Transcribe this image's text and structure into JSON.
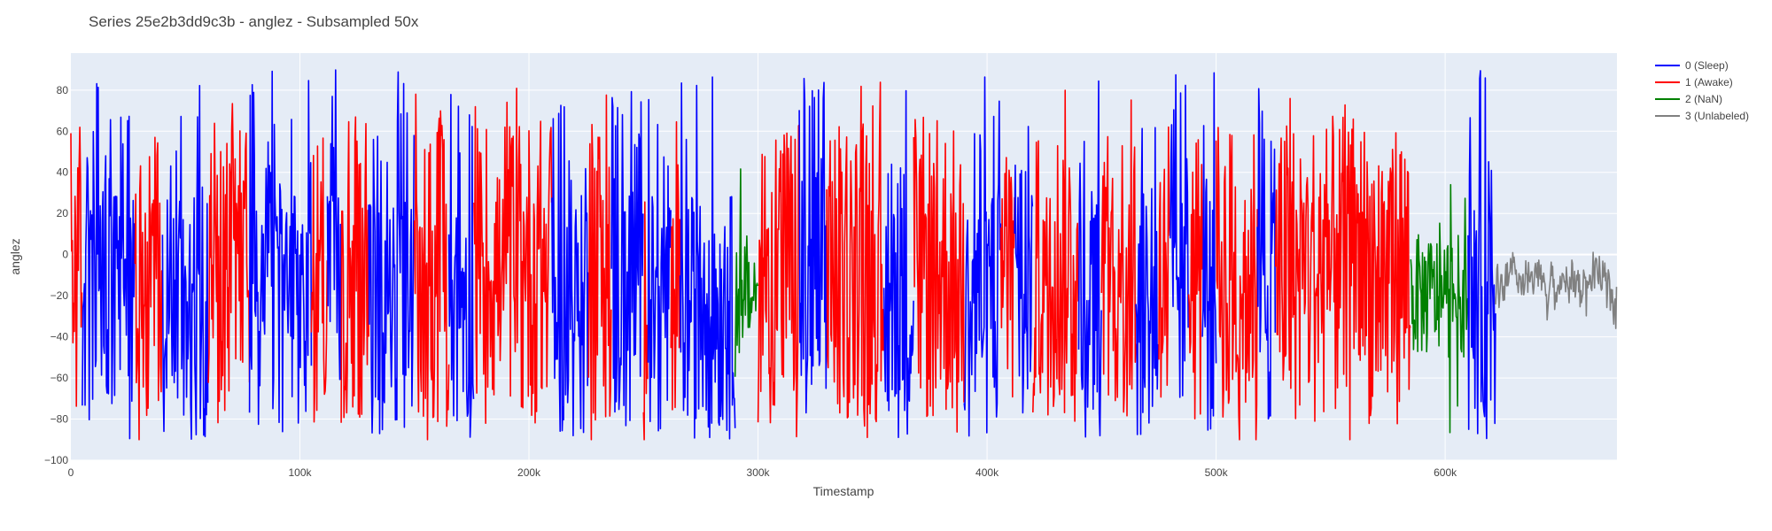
{
  "chart_data": {
    "type": "line",
    "title": "Series 25e2b3dd9c3b - anglez - Subsampled 50x",
    "xlabel": "Timestamp",
    "ylabel": "anglez",
    "xlim": [
      0,
      675000
    ],
    "ylim": [
      -100,
      98
    ],
    "x_ticks": [
      0,
      100000,
      200000,
      300000,
      400000,
      500000,
      600000
    ],
    "x_tick_labels": [
      "0",
      "100k",
      "200k",
      "300k",
      "400k",
      "500k",
      "600k"
    ],
    "y_ticks": [
      -100,
      -80,
      -60,
      -40,
      -20,
      0,
      20,
      40,
      60,
      80
    ],
    "y_tick_labels": [
      "−100",
      "−80",
      "−60",
      "−40",
      "−20",
      "0",
      "20",
      "40",
      "60",
      "80"
    ],
    "grid": true,
    "legend_position": "top-right",
    "series": [
      {
        "name": "0 (Sleep)",
        "color": "#0000ff",
        "segments": [
          [
            5000,
            28000
          ],
          [
            40000,
            60000
          ],
          [
            78000,
            105000
          ],
          [
            112000,
            118000
          ],
          [
            130000,
            150000
          ],
          [
            165000,
            176000
          ],
          [
            210000,
            226000
          ],
          [
            236000,
            250000
          ],
          [
            252000,
            262000
          ],
          [
            266000,
            290000
          ],
          [
            318000,
            330000
          ],
          [
            355000,
            368000
          ],
          [
            390000,
            406000
          ],
          [
            412000,
            420000
          ],
          [
            440000,
            450000
          ],
          [
            465000,
            475000
          ],
          [
            480000,
            488000
          ],
          [
            494000,
            500000
          ],
          [
            518000,
            526000
          ],
          [
            610000,
            622000
          ]
        ]
      },
      {
        "name": "1 (Awake)",
        "color": "#ff0000",
        "segments": [
          [
            0,
            5000
          ],
          [
            28000,
            40000
          ],
          [
            60000,
            78000
          ],
          [
            105000,
            112000
          ],
          [
            118000,
            130000
          ],
          [
            150000,
            165000
          ],
          [
            176000,
            210000
          ],
          [
            226000,
            236000
          ],
          [
            250000,
            252000
          ],
          [
            262000,
            266000
          ],
          [
            300000,
            318000
          ],
          [
            330000,
            355000
          ],
          [
            368000,
            390000
          ],
          [
            406000,
            412000
          ],
          [
            420000,
            440000
          ],
          [
            450000,
            465000
          ],
          [
            475000,
            480000
          ],
          [
            488000,
            494000
          ],
          [
            500000,
            518000
          ],
          [
            526000,
            585000
          ]
        ]
      },
      {
        "name": "2 (NaN)",
        "color": "#008000",
        "segments": [
          [
            290000,
            300000
          ],
          [
            585000,
            610000
          ]
        ]
      },
      {
        "name": "3 (Unlabeled)",
        "color": "#808080",
        "segments": [
          [
            622000,
            675000
          ]
        ]
      }
    ]
  }
}
